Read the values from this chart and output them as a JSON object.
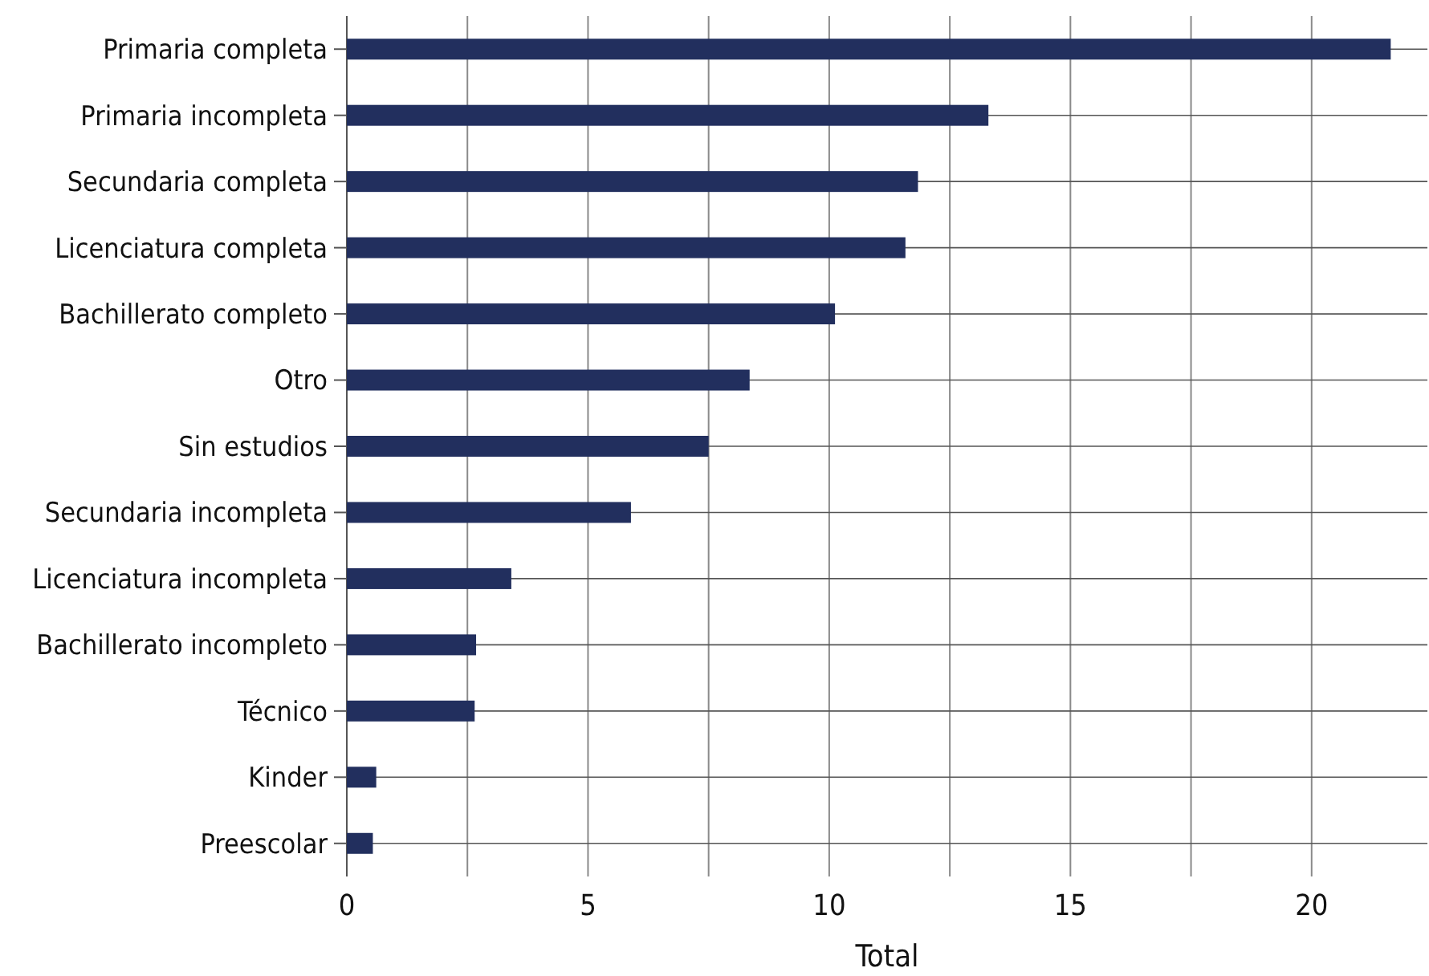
{
  "chart_data": {
    "type": "bar",
    "orientation": "horizontal",
    "xlabel": "Total",
    "categories": [
      "Primaria completa",
      "Primaria incompleta",
      "Secundaria completa",
      "Licenciatura completa",
      "Bachillerato completo",
      "Otro",
      "Sin estudios",
      "Secundaria incompleta",
      "Licenciatura incompleta",
      "Bachillerato incompleto",
      "Técnico",
      "Kinder",
      "Preescolar"
    ],
    "values": [
      21.64,
      13.3,
      11.84,
      11.58,
      10.12,
      8.35,
      7.5,
      5.89,
      3.41,
      2.68,
      2.65,
      0.61,
      0.54
    ],
    "color": "#222f5e",
    "xlim": [
      0,
      22.4
    ],
    "xticks": [
      0,
      {
        "value": 2.5,
        "label": null
      },
      5,
      {
        "value": 7.5,
        "label": null
      },
      10,
      {
        "value": 12.5,
        "label": null
      },
      15,
      {
        "value": 17.5,
        "label": null
      },
      20
    ],
    "grid": true
  }
}
